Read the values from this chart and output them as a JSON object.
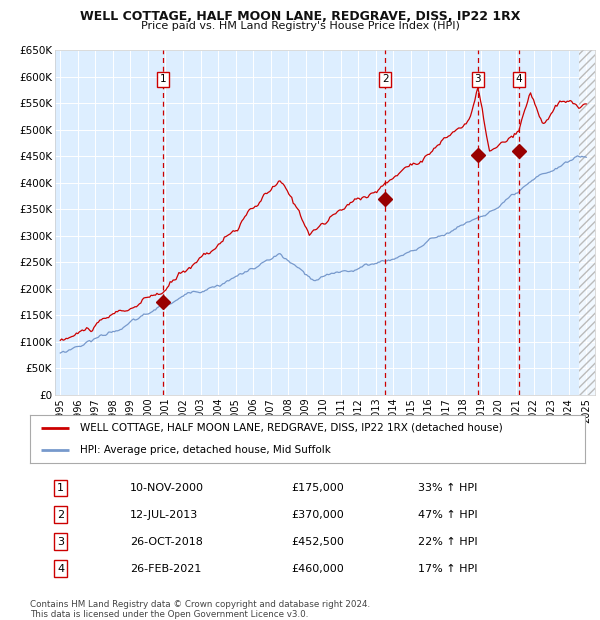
{
  "title": "WELL COTTAGE, HALF MOON LANE, REDGRAVE, DISS, IP22 1RX",
  "subtitle": "Price paid vs. HM Land Registry's House Price Index (HPI)",
  "ylim": [
    0,
    650000
  ],
  "yticks": [
    0,
    50000,
    100000,
    150000,
    200000,
    250000,
    300000,
    350000,
    400000,
    450000,
    500000,
    550000,
    600000,
    650000
  ],
  "ytick_labels": [
    "£0",
    "£50K",
    "£100K",
    "£150K",
    "£200K",
    "£250K",
    "£300K",
    "£350K",
    "£400K",
    "£450K",
    "£500K",
    "£550K",
    "£600K",
    "£650K"
  ],
  "xlim_start": 1994.7,
  "xlim_end": 2025.5,
  "xticks": [
    1995,
    1996,
    1997,
    1998,
    1999,
    2000,
    2001,
    2002,
    2003,
    2004,
    2005,
    2006,
    2007,
    2008,
    2009,
    2010,
    2011,
    2012,
    2013,
    2014,
    2015,
    2016,
    2017,
    2018,
    2019,
    2020,
    2021,
    2022,
    2023,
    2024,
    2025
  ],
  "plot_bg_color": "#ddeeff",
  "grid_color": "#ffffff",
  "red_line_color": "#cc0000",
  "blue_line_color": "#7799cc",
  "sale_marker_color": "#990000",
  "dashed_line_color": "#cc0000",
  "legend_entries": [
    "WELL COTTAGE, HALF MOON LANE, REDGRAVE, DISS, IP22 1RX (detached house)",
    "HPI: Average price, detached house, Mid Suffolk"
  ],
  "sales": [
    {
      "num": 1,
      "date": "10-NOV-2000",
      "year": 2000.87,
      "price": 175000,
      "pct": "33%",
      "dir": "↑"
    },
    {
      "num": 2,
      "date": "12-JUL-2013",
      "year": 2013.54,
      "price": 370000,
      "pct": "47%",
      "dir": "↑"
    },
    {
      "num": 3,
      "date": "26-OCT-2018",
      "year": 2018.82,
      "price": 452500,
      "pct": "22%",
      "dir": "↑"
    },
    {
      "num": 4,
      "date": "26-FEB-2021",
      "year": 2021.15,
      "price": 460000,
      "pct": "17%",
      "dir": "↑"
    }
  ],
  "footer": "Contains HM Land Registry data © Crown copyright and database right 2024.\nThis data is licensed under the Open Government Licence v3.0.",
  "hatch_area_start": 2024.58
}
